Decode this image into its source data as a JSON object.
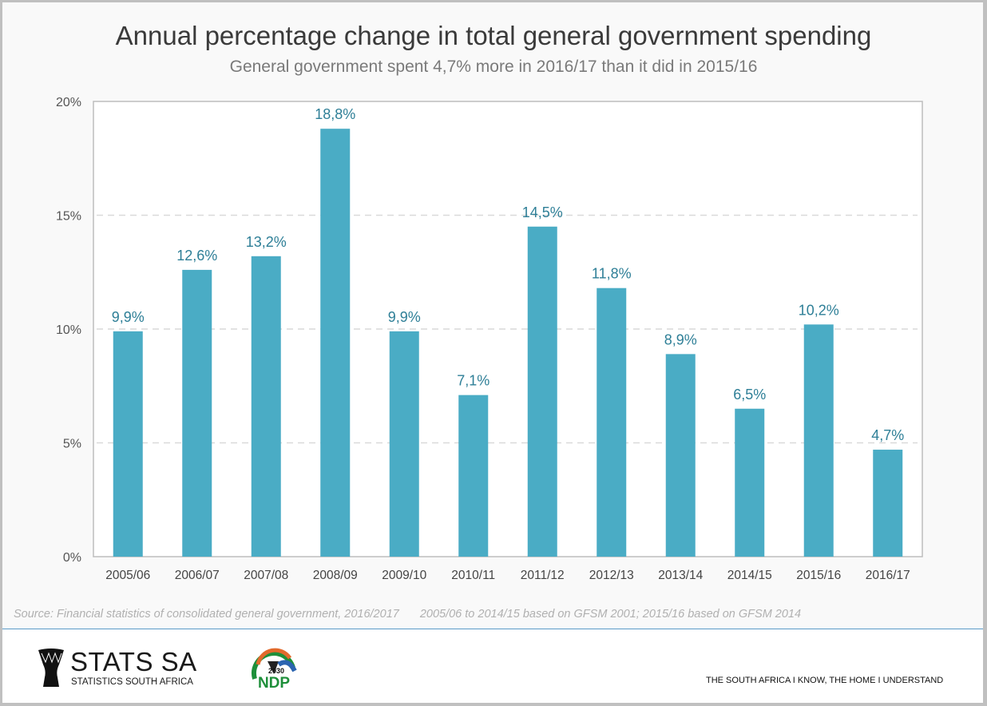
{
  "chart_data": {
    "type": "bar",
    "title": "Annual percentage change in total general government spending",
    "subtitle": "General government spent 4,7% more in 2016/17 than it did in 2015/16",
    "xlabel": "",
    "ylabel": "",
    "categories": [
      "2005/06",
      "2006/07",
      "2007/08",
      "2008/09",
      "2009/10",
      "2010/11",
      "2011/12",
      "2012/13",
      "2013/14",
      "2014/15",
      "2015/16",
      "2016/17"
    ],
    "values": [
      9.9,
      12.6,
      13.2,
      18.8,
      9.9,
      7.1,
      14.5,
      11.8,
      8.9,
      6.5,
      10.2,
      4.7
    ],
    "data_labels": [
      "9,9%",
      "12,6%",
      "13,2%",
      "18,8%",
      "9,9%",
      "7,1%",
      "14,5%",
      "11,8%",
      "8,9%",
      "6,5%",
      "10,2%",
      "4,7%"
    ],
    "ylim": [
      0,
      20
    ],
    "yticks": [
      0,
      5,
      10,
      15,
      20
    ],
    "ytick_labels": [
      "0%",
      "5%",
      "10%",
      "15%",
      "20%"
    ],
    "grid": "horizontal dashed",
    "legend": "none",
    "bar_color": "#4aacc5",
    "label_color": "#2e7f97"
  },
  "source_note": "Source: Financial statistics of consolidated general government, 2016/2017",
  "method_note": "2005/06 to 2014/15 based on GFSM 2001; 2015/16 based on GFSM 2014",
  "footer": {
    "logo_name": "STATS SA",
    "logo_subtitle": "STATISTICS SOUTH AFRICA",
    "ndp_year": "2030",
    "ndp_text": "NDP",
    "tagline": "THE SOUTH AFRICA I KNOW, THE HOME I UNDERSTAND"
  }
}
